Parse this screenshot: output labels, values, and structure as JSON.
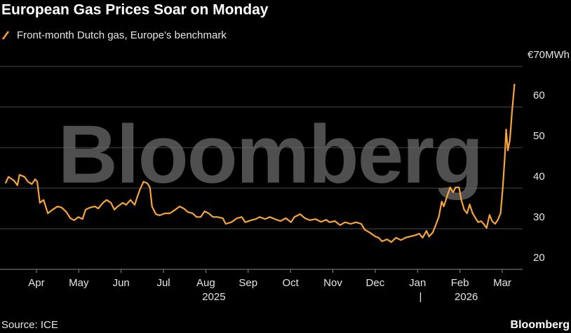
{
  "chart_data": {
    "type": "line",
    "title": "European Gas Prices Soar on Monday",
    "watermark": "Bloomberg",
    "source": "Source: ICE",
    "brand": "Bloomberg",
    "xlim": [
      3.14,
      15.48
    ],
    "xticks": [
      {
        "value": 4,
        "label": "Apr"
      },
      {
        "value": 5,
        "label": "May"
      },
      {
        "value": 6,
        "label": "Jun"
      },
      {
        "value": 7,
        "label": "Jul"
      },
      {
        "value": 8,
        "label": "Aug"
      },
      {
        "value": 9,
        "label": "Sep"
      },
      {
        "value": 10,
        "label": "Oct"
      },
      {
        "value": 11,
        "label": "Nov"
      },
      {
        "value": 12,
        "label": "Dec"
      },
      {
        "value": 13,
        "label": "Jan"
      },
      {
        "value": 14,
        "label": "Feb"
      },
      {
        "value": 15,
        "label": "Mar"
      }
    ],
    "x_year_labels": [
      {
        "value": 8.19,
        "label": "2025"
      },
      {
        "value": 13.07,
        "label": "|"
      },
      {
        "value": 14.15,
        "label": "2026"
      }
    ],
    "ylim": [
      20,
      70
    ],
    "yticks": [
      20,
      30,
      40,
      50,
      60,
      {
        "value": 70,
        "label": "€70MWh"
      }
    ],
    "grid": true,
    "x": [
      3.27,
      3.34,
      3.47,
      3.55,
      3.6,
      3.72,
      3.8,
      3.89,
      3.97,
      4.02,
      4.08,
      4.17,
      4.27,
      4.38,
      4.5,
      4.6,
      4.71,
      4.8,
      4.89,
      4.99,
      5.09,
      5.16,
      5.26,
      5.38,
      5.46,
      5.57,
      5.66,
      5.76,
      5.84,
      5.92,
      6.04,
      6.12,
      6.22,
      6.32,
      6.39,
      6.45,
      6.53,
      6.62,
      6.68,
      6.73,
      6.82,
      6.91,
      7.03,
      7.15,
      7.28,
      7.38,
      7.48,
      7.58,
      7.69,
      7.78,
      7.88,
      7.97,
      8.07,
      8.17,
      8.27,
      8.4,
      8.47,
      8.6,
      8.74,
      8.85,
      8.93,
      9.07,
      9.18,
      9.27,
      9.4,
      9.51,
      9.63,
      9.76,
      9.89,
      10.01,
      10.09,
      10.23,
      10.34,
      10.46,
      10.59,
      10.72,
      10.84,
      10.92,
      11.05,
      11.17,
      11.29,
      11.42,
      11.55,
      11.67,
      11.75,
      11.88,
      12.0,
      12.08,
      12.16,
      12.28,
      12.38,
      12.49,
      12.61,
      12.71,
      12.83,
      12.94,
      13.04,
      13.12,
      13.21,
      13.27,
      13.36,
      13.44,
      13.5,
      13.57,
      13.62,
      13.7,
      13.77,
      13.84,
      13.9,
      13.98,
      14.03,
      14.1,
      14.17,
      14.23,
      14.3,
      14.37,
      14.43,
      14.5,
      14.56,
      14.63,
      14.7,
      14.76,
      14.83,
      14.89,
      14.96,
      15.01,
      15.06,
      15.09,
      15.13,
      15.18,
      15.23,
      15.29
    ],
    "series": [
      {
        "name": "Front-month Dutch gas, Europe's benchmark",
        "color": "#f7a43a",
        "values": [
          41.2,
          42.8,
          41.9,
          40.7,
          43.3,
          42.8,
          41.6,
          41.0,
          42.2,
          41.6,
          36.4,
          37.1,
          33.8,
          34.7,
          35.5,
          35.2,
          34.1,
          32.6,
          32.1,
          32.9,
          32.4,
          34.7,
          35.2,
          35.5,
          35.0,
          36.4,
          37.1,
          36.4,
          34.7,
          35.5,
          36.4,
          35.9,
          37.1,
          35.9,
          38.1,
          39.8,
          41.6,
          41.2,
          40.2,
          35.5,
          33.6,
          33.3,
          33.8,
          33.8,
          34.7,
          35.5,
          35.0,
          34.1,
          33.8,
          32.9,
          32.9,
          34.3,
          33.8,
          32.9,
          32.9,
          32.6,
          31.2,
          31.6,
          32.6,
          32.9,
          31.6,
          32.1,
          32.4,
          32.9,
          32.4,
          32.9,
          32.4,
          31.9,
          32.6,
          31.6,
          32.9,
          33.6,
          32.6,
          32.1,
          32.4,
          31.7,
          32.2,
          31.6,
          31.9,
          30.9,
          31.6,
          31.2,
          31.6,
          31.2,
          29.8,
          29.0,
          28.1,
          27.8,
          26.9,
          27.4,
          26.7,
          27.8,
          27.2,
          27.8,
          28.1,
          28.4,
          28.8,
          27.8,
          29.5,
          28.1,
          29.1,
          31.2,
          32.9,
          36.7,
          35.5,
          38.1,
          40.2,
          39.0,
          40.2,
          40.2,
          37.2,
          34.7,
          33.8,
          36.0,
          33.8,
          32.6,
          31.6,
          31.9,
          31.2,
          30.2,
          33.4,
          31.9,
          31.2,
          32.1,
          33.8,
          39.8,
          47.6,
          54.5,
          49.3,
          51.9,
          58.8,
          65.7
        ]
      }
    ]
  }
}
